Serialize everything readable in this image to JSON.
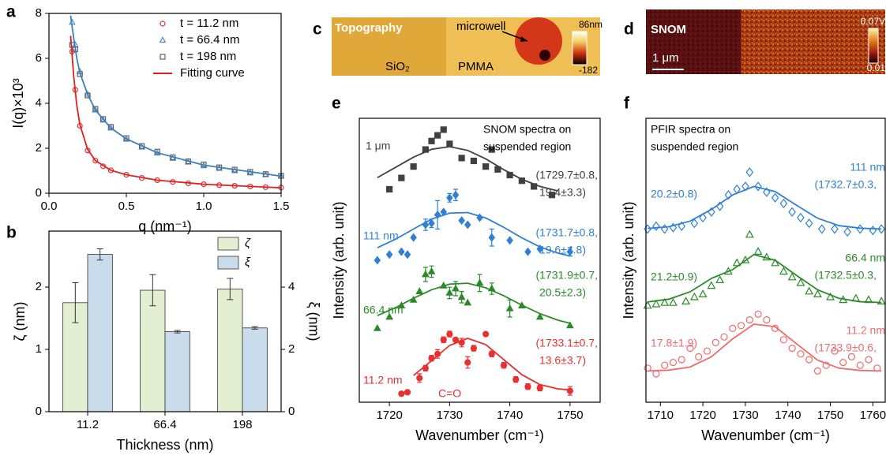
{
  "panel_labels": [
    "a",
    "b",
    "c",
    "d",
    "e",
    "f"
  ],
  "images": {
    "c": {
      "title": "Topography",
      "labels": [
        "microwell",
        "SiO₂",
        "PMMA"
      ],
      "colorbar": [
        "86nm",
        "-182"
      ]
    },
    "d": {
      "title": "SNOM",
      "scalebar": "1 μm",
      "colorbar": [
        "0.07V",
        "0.01"
      ]
    }
  },
  "chart_data": [
    {
      "type": "scatter",
      "xlabel": "q (nm⁻¹)",
      "ylabel": "I(q)×10³",
      "xlim": [
        0,
        1.5
      ],
      "ylim": [
        0,
        8
      ],
      "xticks": [
        {
          "value": 0,
          "label": "0.0"
        },
        0.5,
        {
          "value": 1,
          "label": "1.0"
        },
        1.5
      ],
      "yticks": [
        0,
        2,
        4,
        6,
        8
      ],
      "legend": "upper right",
      "series": [
        {
          "name": "t = 11.2 nm",
          "color": "#e03030",
          "marker": "circle",
          "x": [
            0.15,
            0.17,
            0.2,
            0.25,
            0.3,
            0.35,
            0.4,
            0.5,
            0.6,
            0.7,
            0.8,
            0.9,
            1.0,
            1.1,
            1.2,
            1.3,
            1.4,
            1.5
          ],
          "values": [
            6.3,
            4.6,
            3.0,
            1.9,
            1.45,
            1.2,
            1.02,
            0.82,
            0.68,
            0.58,
            0.5,
            0.44,
            0.4,
            0.36,
            0.33,
            0.3,
            0.27,
            0.25
          ]
        },
        {
          "name": "t = 66.4 nm",
          "color": "#4a90d0",
          "marker": "triangle",
          "x": [
            0.15,
            0.17,
            0.2,
            0.25,
            0.3,
            0.35,
            0.4,
            0.5,
            0.6,
            0.7,
            0.8,
            0.9,
            1.0,
            1.1,
            1.2,
            1.3,
            1.4,
            1.5
          ],
          "values": [
            7.6,
            6.6,
            5.4,
            4.4,
            3.7,
            3.25,
            2.9,
            2.4,
            2.05,
            1.78,
            1.55,
            1.38,
            1.22,
            1.1,
            1.0,
            0.9,
            0.82,
            0.75
          ]
        },
        {
          "name": "t = 198 nm",
          "color": "#606060",
          "marker": "square",
          "x": [
            0.15,
            0.17,
            0.2,
            0.25,
            0.3,
            0.35,
            0.4,
            0.5,
            0.6,
            0.7,
            0.8,
            0.9,
            1.0,
            1.1,
            1.2,
            1.3,
            1.4,
            1.5
          ],
          "values": [
            6.6,
            6.4,
            5.3,
            4.35,
            3.75,
            3.3,
            2.95,
            2.45,
            2.1,
            1.85,
            1.6,
            1.42,
            1.28,
            1.15,
            1.05,
            0.95,
            0.85,
            0.78
          ]
        },
        {
          "name": "Fitting curve",
          "color": "#e02020",
          "line": true,
          "x": [
            0.14,
            0.16,
            0.18,
            0.2,
            0.25,
            0.3,
            0.4,
            0.5,
            0.7,
            1.0,
            1.5
          ],
          "values": [
            7.0,
            5.2,
            3.9,
            3.05,
            1.95,
            1.45,
            1.02,
            0.82,
            0.58,
            0.4,
            0.24
          ]
        },
        {
          "color": "#3a7fc0",
          "line": true,
          "x": [
            0.14,
            0.16,
            0.18,
            0.2,
            0.25,
            0.3,
            0.4,
            0.5,
            0.7,
            1.0,
            1.5
          ],
          "values": [
            7.9,
            6.9,
            6.0,
            5.35,
            4.4,
            3.7,
            2.9,
            2.42,
            1.8,
            1.25,
            0.76
          ]
        }
      ]
    },
    {
      "type": "bar",
      "xlabel": "Thickness (nm)",
      "ylabel": "ζ (nm)",
      "y2label": "ξ (nm)",
      "categories": [
        "11.2",
        "66.4",
        "198"
      ],
      "ylim": [
        0,
        2.9
      ],
      "yticks": [
        0,
        1,
        2
      ],
      "y2lim": [
        0,
        5.8
      ],
      "y2ticks": [
        0,
        2,
        4
      ],
      "legend": "upper right",
      "series": [
        {
          "name": "ζ",
          "color": "#e2efd0",
          "values": [
            1.75,
            1.95,
            1.97
          ],
          "errors": [
            0.32,
            0.25,
            0.17
          ]
        },
        {
          "name": "ξ",
          "color": "#c9dcec",
          "axis": "y2",
          "values": [
            5.05,
            2.57,
            2.69
          ],
          "errors": [
            0.18,
            0.04,
            0.04
          ]
        }
      ]
    },
    {
      "type": "scatter",
      "xlabel": "Wavenumber (cm⁻¹)",
      "ylabel": "Intensity (arb. unit)",
      "xlim": [
        1715,
        1755
      ],
      "ylim": [
        0,
        10
      ],
      "xticks": [
        1720,
        1730,
        1740,
        1750
      ],
      "series": [
        {
          "color": "#404040",
          "marker": "square",
          "filled": true,
          "x": [
            1720,
            1722,
            1724,
            1726,
            1727,
            1728,
            1729,
            1730,
            1732,
            1734,
            1736,
            1737,
            1738,
            1740,
            1742,
            1744,
            1747
          ],
          "values": [
            7.5,
            7.9,
            8.3,
            8.9,
            9.2,
            9.4,
            9.6,
            9.1,
            8.6,
            8.5,
            8.3,
            8.9,
            8.2,
            8.0,
            7.8,
            7.6,
            7.3
          ]
        },
        {
          "color": "#404040",
          "line": true,
          "x": [
            1718,
            1721,
            1724,
            1727,
            1730,
            1733,
            1736,
            1739,
            1742,
            1745,
            1748
          ],
          "values": [
            7.91,
            8.27,
            8.63,
            8.91,
            9.0,
            8.87,
            8.57,
            8.19,
            7.85,
            7.6,
            7.44
          ]
        },
        {
          "color": "#2f7fd6",
          "marker": "diamond",
          "filled": true,
          "x": [
            1718,
            1720,
            1722,
            1723,
            1724,
            1726,
            1727,
            1728,
            1729,
            1730,
            1731,
            1732,
            1733,
            1735,
            1737,
            1740,
            1743,
            1745,
            1750
          ],
          "values": [
            5.0,
            5.2,
            5.3,
            5.2,
            5.8,
            6.25,
            6.3,
            6.6,
            6.7,
            7.2,
            7.3,
            6.4,
            6.25,
            6.5,
            5.8,
            5.7,
            5.3,
            5.4,
            5.3
          ],
          "errors": [
            null,
            null,
            null,
            null,
            null,
            0.2,
            0.15,
            0.5,
            null,
            0.15,
            0.2,
            null,
            null,
            null,
            0.3,
            null,
            null,
            null,
            0.15
          ]
        },
        {
          "color": "#2f7fd6",
          "line": true,
          "x": [
            1718,
            1721,
            1724,
            1727,
            1730,
            1733,
            1736,
            1739,
            1742,
            1745,
            1748,
            1750
          ],
          "values": [
            5.44,
            5.74,
            6.1,
            6.45,
            6.66,
            6.68,
            6.49,
            6.16,
            5.79,
            5.47,
            5.25,
            5.15
          ]
        },
        {
          "color": "#2a8a2a",
          "marker": "triangle",
          "filled": true,
          "x": [
            1718,
            1720,
            1722,
            1724,
            1725,
            1726,
            1727,
            1729,
            1730,
            1731,
            1732,
            1733,
            1735,
            1737,
            1740,
            1742,
            1745,
            1750
          ],
          "values": [
            2.6,
            3.0,
            3.4,
            3.6,
            3.9,
            4.5,
            4.6,
            4.1,
            3.85,
            4.0,
            3.7,
            3.5,
            4.2,
            4.0,
            3.3,
            3.4,
            3.0,
            2.7
          ],
          "errors": [
            null,
            null,
            null,
            null,
            null,
            0.25,
            0.2,
            null,
            0.2,
            0.25,
            0.2,
            null,
            0.3,
            0.2,
            0.3,
            null,
            null,
            null
          ]
        },
        {
          "color": "#2a8a2a",
          "line": true,
          "x": [
            1718,
            1721,
            1724,
            1727,
            1730,
            1733,
            1736,
            1739,
            1742,
            1745,
            1748,
            1750
          ],
          "values": [
            3.05,
            3.33,
            3.66,
            3.96,
            4.16,
            4.19,
            4.03,
            3.75,
            3.42,
            3.12,
            2.89,
            2.78
          ]
        },
        {
          "color": "#e83030",
          "marker": "circle",
          "filled": true,
          "x": [
            1722,
            1723,
            1725,
            1726,
            1727,
            1728,
            1729,
            1730,
            1731,
            1732,
            1733,
            1734,
            1736,
            1737,
            1739,
            1741,
            1743,
            1745,
            1750
          ],
          "values": [
            0.3,
            0.35,
            0.85,
            1.2,
            1.55,
            1.7,
            2.2,
            2.4,
            2.2,
            2.1,
            1.4,
            1.9,
            2.4,
            1.7,
            1.3,
            0.8,
            0.55,
            0.5,
            0.4
          ],
          "errors": [
            null,
            null,
            0.15,
            0.1,
            0.1,
            0.15,
            0.1,
            0.1,
            null,
            0.15,
            0.2,
            0.1,
            null,
            0.1,
            0.1,
            0.1,
            0.1,
            0.1,
            0.15
          ]
        },
        {
          "color": "#e83030",
          "line": true,
          "x": [
            1724,
            1727,
            1730,
            1733,
            1736,
            1739,
            1742,
            1745,
            1748,
            1750
          ],
          "values": [
            0.94,
            1.46,
            2.0,
            2.25,
            2.03,
            1.5,
            0.97,
            0.62,
            0.47,
            0.43
          ]
        }
      ],
      "annotations": [
        {
          "text": "SNOM spectra on",
          "color": "#000000"
        },
        {
          "text": "suspended region",
          "color": "#000000"
        },
        {
          "text": "1 μm",
          "color": "#404040"
        },
        {
          "text": "(1729.7±0.8,",
          "color": "#404040"
        },
        {
          "text": "19.4±3.3)",
          "color": "#404040"
        },
        {
          "text": "111 nm",
          "color": "#2f7fd6"
        },
        {
          "text": "(1731.7±0.8,",
          "color": "#2f7fd6"
        },
        {
          "text": "19.6±4.8)",
          "color": "#2f7fd6"
        },
        {
          "text": "66.4 nm",
          "color": "#2a8a2a"
        },
        {
          "text": "(1731.9±0.7,",
          "color": "#2a8a2a"
        },
        {
          "text": "20.5±2.3)",
          "color": "#2a8a2a"
        },
        {
          "text": "11.2 nm",
          "color": "#e83030"
        },
        {
          "text": "(1733.1±0.7,",
          "color": "#e83030"
        },
        {
          "text": "13.6±3.7)",
          "color": "#e83030"
        },
        {
          "text": "C=O",
          "color": "#e83030"
        }
      ]
    },
    {
      "type": "scatter",
      "xlabel": "Wavenumber (cm⁻¹)",
      "ylabel": "Intensity (arb. unit)",
      "xlim": [
        1706.6,
        1762.9
      ],
      "ylim": [
        0,
        10
      ],
      "xticks": [
        1710,
        1720,
        1730,
        1740,
        1750,
        1760
      ],
      "series": [
        {
          "color": "#2f7fd6",
          "marker": "diamond",
          "filled": false,
          "x": [
            1707,
            1709,
            1711,
            1713,
            1715,
            1718,
            1720,
            1722,
            1724,
            1726,
            1728,
            1730,
            1731,
            1733,
            1735,
            1737,
            1739,
            1741,
            1743,
            1745,
            1748,
            1751,
            1754,
            1757,
            1760,
            1762
          ],
          "values": [
            6.1,
            6.2,
            6.1,
            6.15,
            6.2,
            6.3,
            6.5,
            6.7,
            6.9,
            7.3,
            7.5,
            7.6,
            8.1,
            7.6,
            7.4,
            7.2,
            7.0,
            6.7,
            6.5,
            6.3,
            6.1,
            6.1,
            6.0,
            6.1,
            6.05,
            6.1
          ]
        },
        {
          "color": "#2f7fd6",
          "line": true,
          "x": [
            1707,
            1712,
            1717,
            1722,
            1727,
            1732,
            1737,
            1742,
            1747,
            1752,
            1757,
            1762
          ],
          "values": [
            6.12,
            6.18,
            6.38,
            6.79,
            7.3,
            7.6,
            7.42,
            6.94,
            6.48,
            6.22,
            6.13,
            6.1
          ]
        },
        {
          "color": "#2a8a2a",
          "marker": "triangle",
          "filled": false,
          "x": [
            1707,
            1709,
            1711,
            1713,
            1716,
            1718,
            1720,
            1722,
            1724,
            1726,
            1728,
            1730,
            1731,
            1733,
            1735,
            1737,
            1739,
            1741,
            1743,
            1745,
            1747,
            1750,
            1753,
            1756,
            1759,
            1762
          ],
          "values": [
            3.4,
            3.45,
            3.5,
            3.5,
            3.55,
            3.7,
            3.8,
            4.1,
            4.3,
            4.6,
            4.9,
            5.0,
            5.9,
            5.3,
            5.1,
            4.9,
            4.6,
            4.4,
            4.2,
            3.9,
            3.8,
            3.7,
            3.6,
            3.65,
            3.6,
            3.55
          ]
        },
        {
          "color": "#2a8a2a",
          "line": true,
          "x": [
            1707,
            1712,
            1717,
            1722,
            1727,
            1732,
            1737,
            1742,
            1747,
            1752,
            1757,
            1762
          ],
          "values": [
            3.53,
            3.63,
            3.89,
            4.36,
            4.67,
            5.2,
            5.0,
            4.47,
            3.96,
            3.66,
            3.54,
            3.51
          ]
        },
        {
          "color": "#f06a6a",
          "marker": "circle",
          "filled": false,
          "x": [
            1707,
            1709,
            1711,
            1713,
            1715,
            1717,
            1719,
            1721,
            1723,
            1725,
            1727,
            1729,
            1731,
            1733,
            1735,
            1737,
            1739,
            1741,
            1743,
            1745,
            1747,
            1749,
            1751,
            1753,
            1755,
            1757,
            1759,
            1761
          ],
          "values": [
            1.2,
            1.0,
            1.3,
            1.4,
            1.5,
            1.9,
            1.6,
            1.8,
            2.1,
            2.3,
            2.6,
            2.7,
            2.9,
            3.1,
            2.9,
            2.6,
            2.2,
            1.9,
            1.7,
            1.5,
            1.1,
            1.3,
            1.8,
            1.4,
            1.6,
            1.3,
            1.5,
            1.2
          ]
        },
        {
          "color": "#f06a6a",
          "line": true,
          "x": [
            1707,
            1712,
            1717,
            1722,
            1727,
            1732,
            1737,
            1742,
            1747,
            1752,
            1757,
            1762
          ],
          "values": [
            1.1,
            1.13,
            1.24,
            1.6,
            2.23,
            2.75,
            2.66,
            2.06,
            1.48,
            1.2,
            1.12,
            1.1
          ]
        }
      ],
      "annotations": [
        {
          "text": "PFIR spectra on",
          "color": "#000000"
        },
        {
          "text": "suspended region",
          "color": "#000000"
        },
        {
          "text": "111 nm",
          "color": "#2f7fd6"
        },
        {
          "text": "(1732.7±0.3,",
          "color": "#2f7fd6"
        },
        {
          "text": "20.2±0.8)",
          "color": "#2f7fd6"
        },
        {
          "text": "66.4 nm",
          "color": "#2a8a2a"
        },
        {
          "text": "(1732.5±0.3,",
          "color": "#2a8a2a"
        },
        {
          "text": "21.2±0.9)",
          "color": "#2a8a2a"
        },
        {
          "text": "11.2 nm",
          "color": "#f06a6a"
        },
        {
          "text": "(1733.9±0.6,",
          "color": "#f06a6a"
        },
        {
          "text": "17.8±1.9)",
          "color": "#f06a6a"
        }
      ]
    }
  ]
}
